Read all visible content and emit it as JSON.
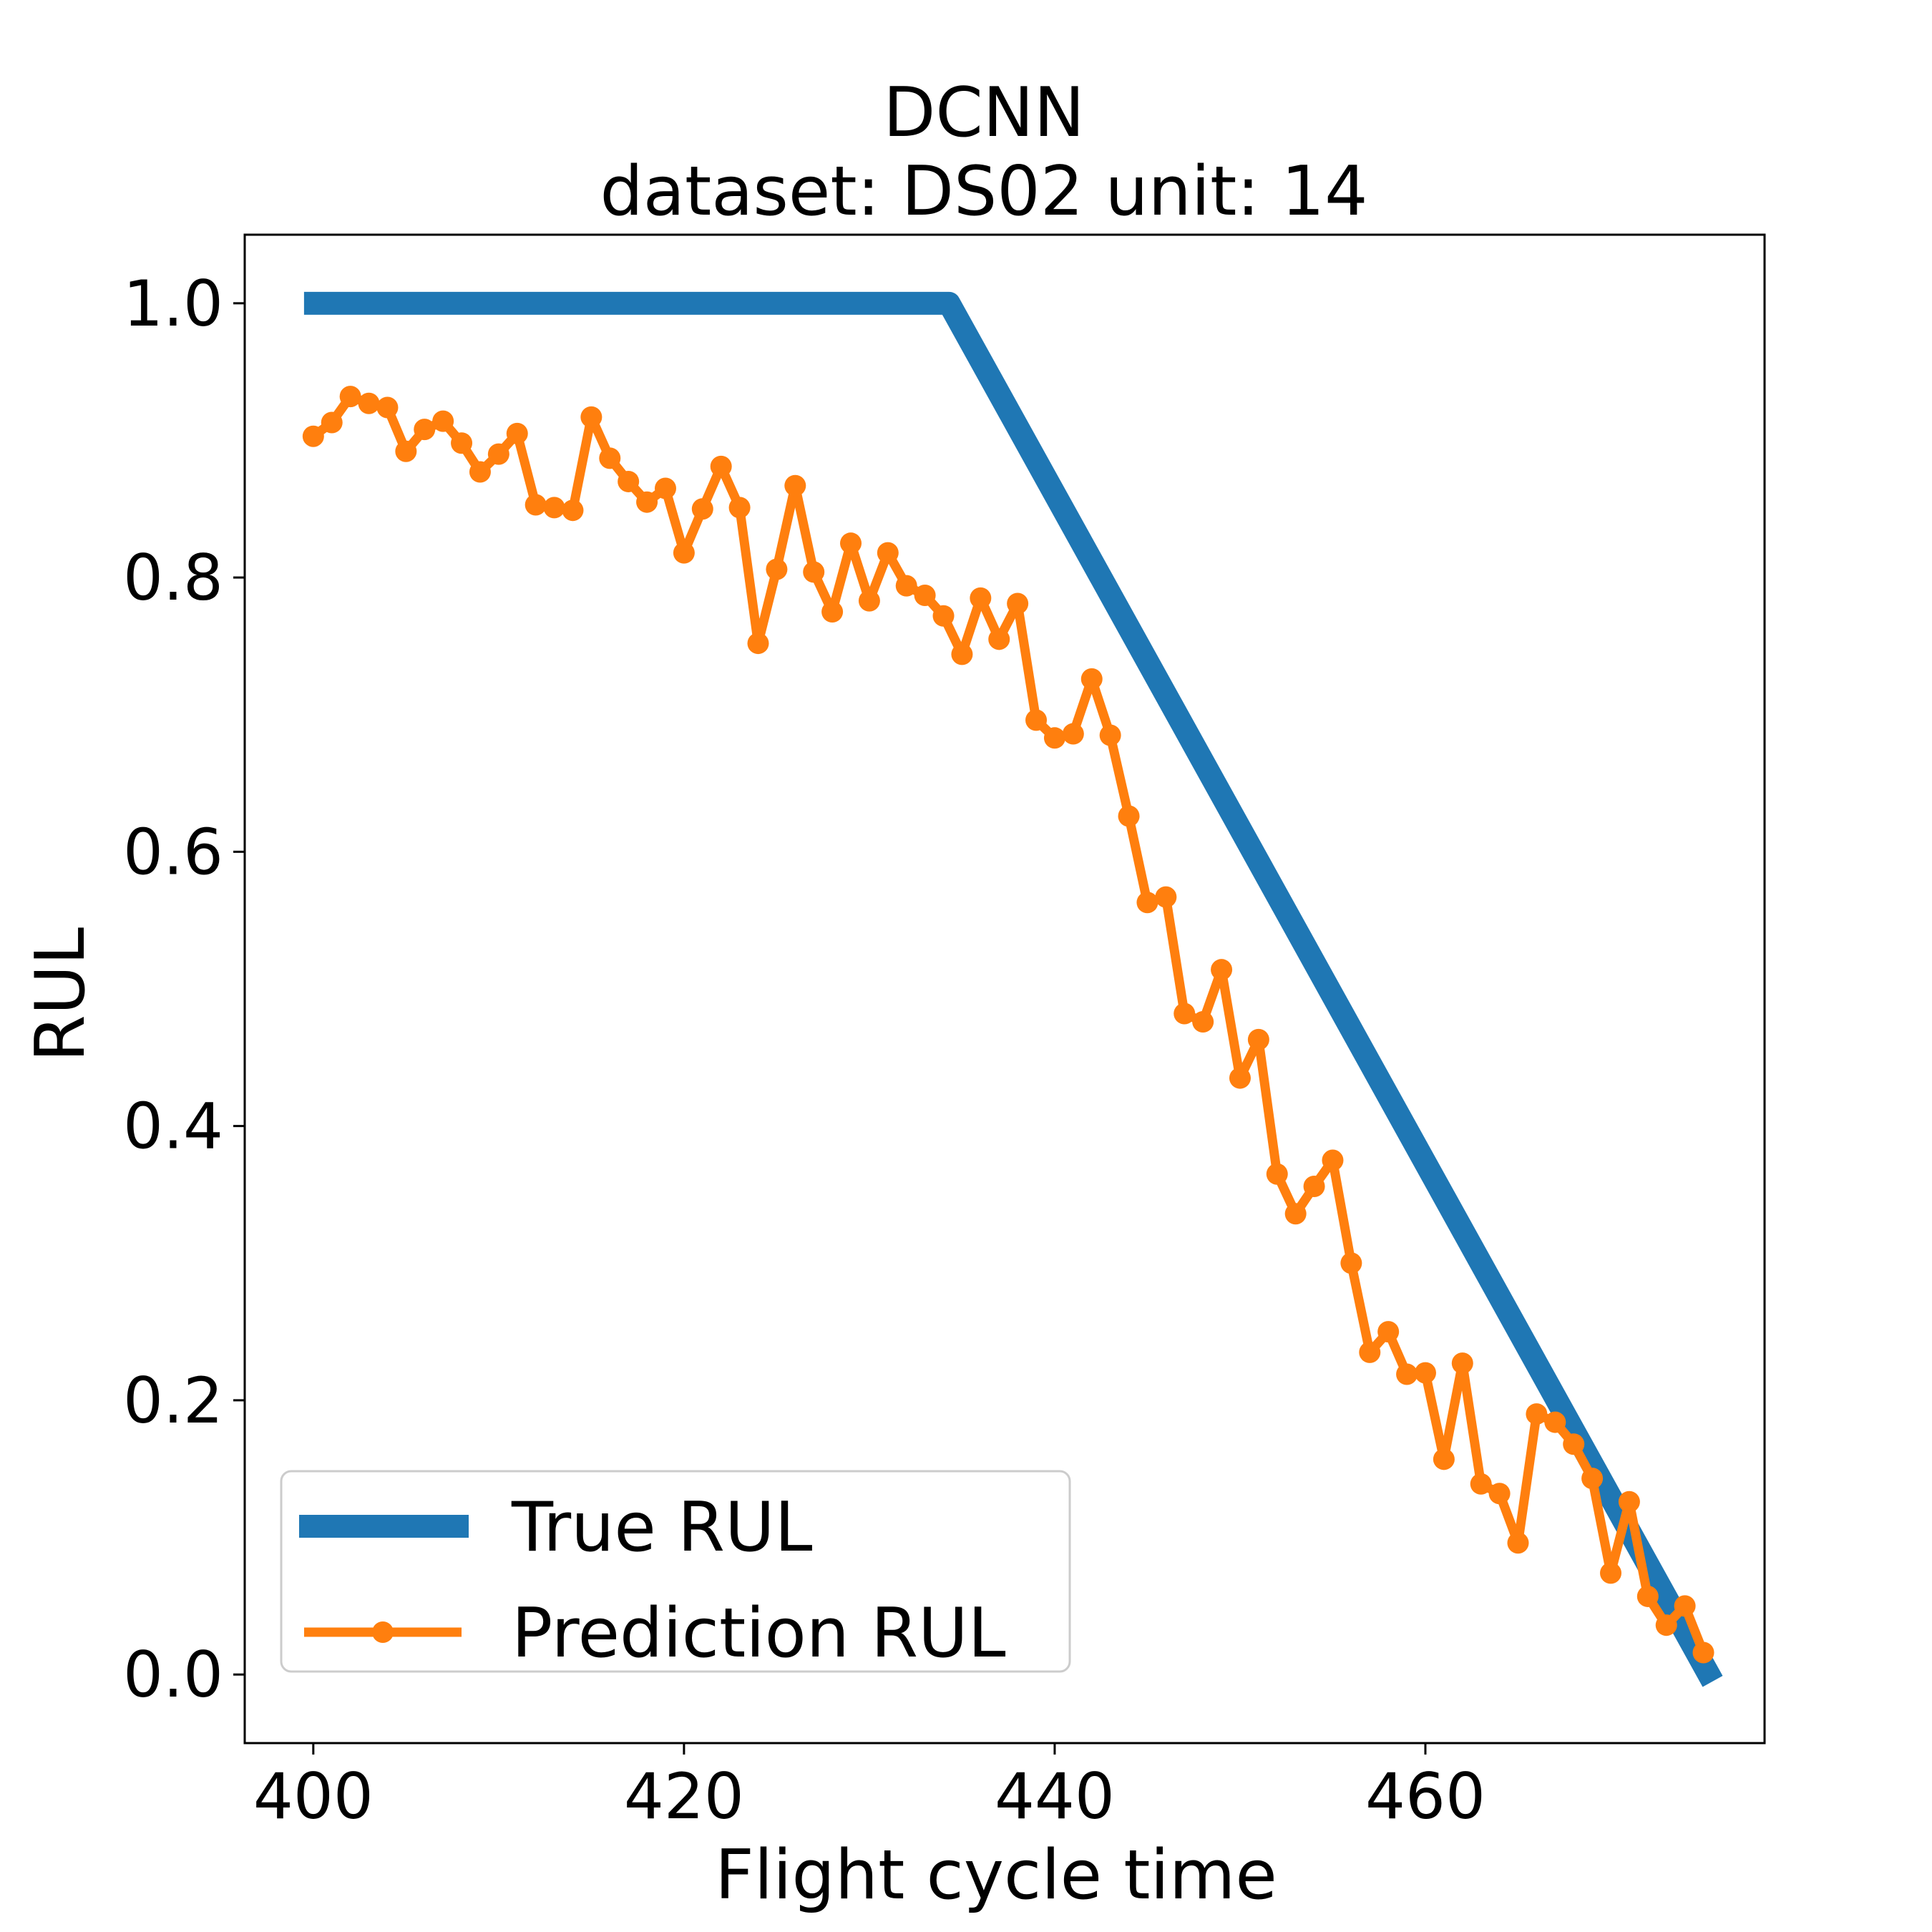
{
  "chart_data": {
    "type": "line",
    "title": "DCNN",
    "subtitle": "dataset: DS02 unit: 14",
    "xlabel": "Flight cycle time",
    "ylabel": "RUL",
    "xlim": [
      396.3,
      478.3
    ],
    "ylim": [
      -0.05,
      1.05
    ],
    "xticks": [
      400,
      420,
      440,
      460
    ],
    "xtick_labels": [
      "400",
      "420",
      "440",
      "460"
    ],
    "yticks": [
      0.0,
      0.2,
      0.4,
      0.6,
      0.8,
      1.0
    ],
    "ytick_labels": [
      "0.0",
      "0.2",
      "0.4",
      "0.6",
      "0.8",
      "1.0"
    ],
    "grid": false,
    "legend_position": "lower-left",
    "series": [
      {
        "name": "True RUL",
        "color": "#1f77b4",
        "marker": "none",
        "x": [
          399.5,
          434.3,
          475.5
        ],
        "y": [
          1.0,
          1.0,
          -0.005
        ]
      },
      {
        "name": "Prediction RUL",
        "color": "#ff7f0e",
        "marker": "circle",
        "x": [
          400,
          401,
          402,
          403,
          404,
          405,
          406,
          407,
          408,
          409,
          410,
          411,
          412,
          413,
          414,
          415,
          416,
          417,
          418,
          419,
          420,
          421,
          422,
          423,
          424,
          425,
          426,
          427,
          428,
          429,
          430,
          431,
          432,
          433,
          434,
          435,
          436,
          437,
          438,
          439,
          440,
          441,
          442,
          443,
          444,
          445,
          446,
          447,
          448,
          449,
          450,
          451,
          452,
          453,
          454,
          455,
          456,
          457,
          458,
          459,
          460,
          461,
          462,
          463,
          464,
          465,
          466,
          467,
          468,
          469,
          470,
          471,
          472,
          473,
          474,
          475
        ],
        "y": [
          0.903,
          0.913,
          0.932,
          0.927,
          0.924,
          0.892,
          0.908,
          0.914,
          0.898,
          0.877,
          0.89,
          0.905,
          0.853,
          0.851,
          0.849,
          0.917,
          0.887,
          0.87,
          0.855,
          0.865,
          0.818,
          0.85,
          0.881,
          0.851,
          0.752,
          0.806,
          0.867,
          0.804,
          0.775,
          0.825,
          0.783,
          0.818,
          0.794,
          0.787,
          0.772,
          0.744,
          0.785,
          0.755,
          0.781,
          0.696,
          0.683,
          0.686,
          0.726,
          0.685,
          0.626,
          0.563,
          0.567,
          0.482,
          0.476,
          0.514,
          0.435,
          0.463,
          0.365,
          0.336,
          0.356,
          0.375,
          0.3,
          0.235,
          0.25,
          0.219,
          0.22,
          0.157,
          0.227,
          0.139,
          0.132,
          0.096,
          0.19,
          0.184,
          0.168,
          0.143,
          0.074,
          0.126,
          0.057,
          0.036,
          0.05,
          0.016
        ]
      }
    ]
  }
}
